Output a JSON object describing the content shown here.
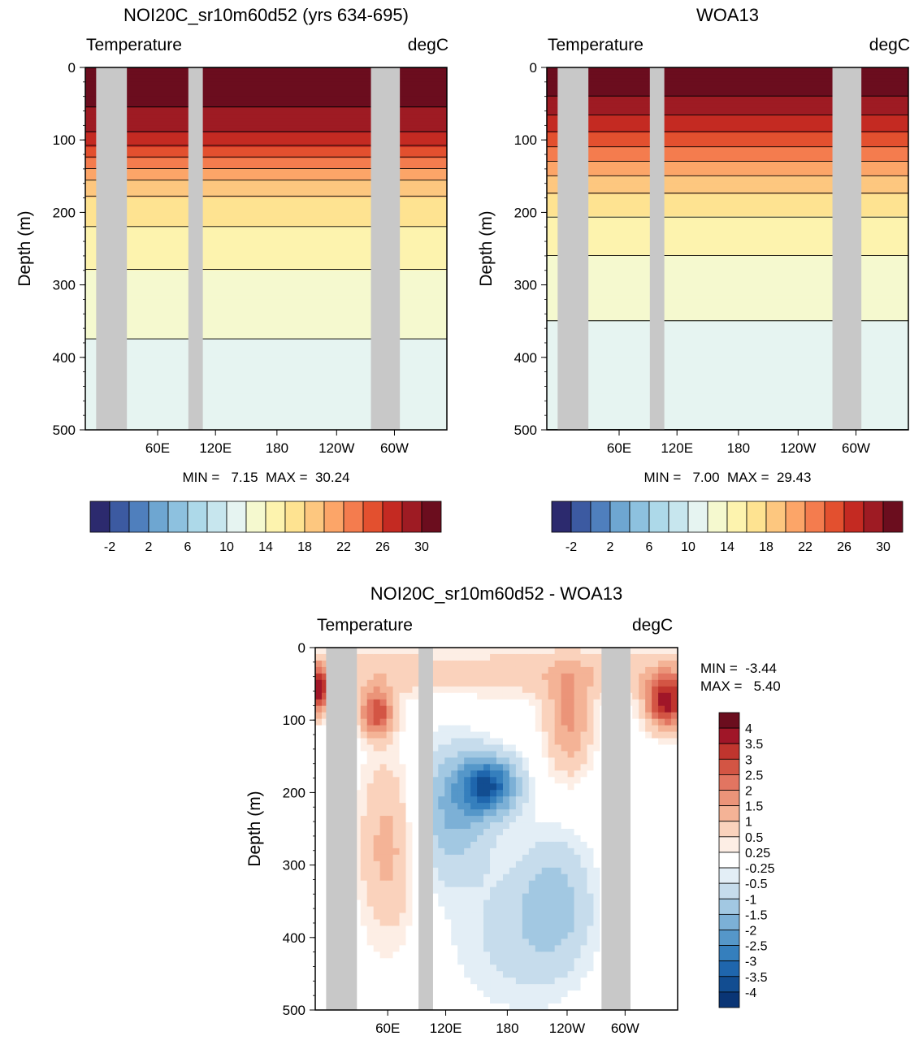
{
  "chart_data": [
    {
      "type": "heatmap",
      "title": "NOI20C_sr10m60d52 (yrs 634-695)",
      "left_label": "Temperature",
      "right_label": "degC",
      "ylabel": "Depth (m)",
      "ylim": [
        0,
        500
      ],
      "y_ticks": [
        "0",
        "100",
        "200",
        "300",
        "400",
        "500"
      ],
      "x_ticks": [
        "60E",
        "120E",
        "180",
        "120W",
        "60W"
      ],
      "min_max_text": "MIN =   7.15  MAX =  30.24",
      "min": 7.15,
      "max": 30.24,
      "colorbar_labels": [
        "-2",
        "2",
        "6",
        "10",
        "14",
        "18",
        "22",
        "26",
        "30"
      ],
      "colorbar_colors": [
        "#2c2a6e",
        "#3c5aa1",
        "#4f7fbd",
        "#6ea6d1",
        "#8dc1df",
        "#add9e9",
        "#c7e6ee",
        "#e6f4f1",
        "#f5f9cf",
        "#fdf3ae",
        "#fee391",
        "#fdc77f",
        "#fca568",
        "#f47c4e",
        "#e3502f",
        "#c42a22",
        "#9e1b23",
        "#6b0d1e"
      ],
      "profile": [
        [
          0,
          30
        ],
        [
          20,
          29
        ],
        [
          40,
          28.5
        ],
        [
          60,
          27.8
        ],
        [
          80,
          26.8
        ],
        [
          100,
          25
        ],
        [
          120,
          22.5
        ],
        [
          140,
          20
        ],
        [
          160,
          17.5
        ],
        [
          180,
          15.8
        ],
        [
          200,
          14.8
        ],
        [
          230,
          13.6
        ],
        [
          260,
          12.5
        ],
        [
          300,
          11.4
        ],
        [
          350,
          10.4
        ],
        [
          400,
          9.6
        ],
        [
          450,
          8.8
        ],
        [
          500,
          8.2
        ]
      ],
      "land": [
        [
          0.03,
          0.115
        ],
        [
          0.285,
          0.325
        ],
        [
          0.79,
          0.87
        ]
      ]
    },
    {
      "type": "heatmap",
      "title": "WOA13",
      "left_label": "Temperature",
      "right_label": "degC",
      "ylabel": "Depth (m)",
      "ylim": [
        0,
        500
      ],
      "y_ticks": [
        "0",
        "100",
        "200",
        "300",
        "400",
        "500"
      ],
      "x_ticks": [
        "60E",
        "120E",
        "180",
        "120W",
        "60W"
      ],
      "min_max_text": "MIN =   7.00  MAX =  29.43",
      "min": 7.0,
      "max": 29.43,
      "colorbar_labels": [
        "-2",
        "2",
        "6",
        "10",
        "14",
        "18",
        "22",
        "26",
        "30"
      ],
      "colorbar_colors": [
        "#2c2a6e",
        "#3c5aa1",
        "#4f7fbd",
        "#6ea6d1",
        "#8dc1df",
        "#add9e9",
        "#c7e6ee",
        "#e6f4f1",
        "#f5f9cf",
        "#fdf3ae",
        "#fee391",
        "#fdc77f",
        "#fca568",
        "#f47c4e",
        "#e3502f",
        "#c42a22",
        "#9e1b23",
        "#6b0d1e"
      ],
      "profile": [
        [
          0,
          29.4
        ],
        [
          20,
          29
        ],
        [
          40,
          28
        ],
        [
          60,
          26.5
        ],
        [
          80,
          24.8
        ],
        [
          100,
          23
        ],
        [
          120,
          21
        ],
        [
          140,
          19
        ],
        [
          160,
          17
        ],
        [
          180,
          15.5
        ],
        [
          200,
          14.3
        ],
        [
          230,
          13
        ],
        [
          260,
          12
        ],
        [
          300,
          11
        ],
        [
          350,
          10
        ],
        [
          400,
          9.3
        ],
        [
          450,
          8.6
        ],
        [
          500,
          8
        ]
      ],
      "land": [
        [
          0.03,
          0.115
        ],
        [
          0.285,
          0.325
        ],
        [
          0.79,
          0.87
        ]
      ]
    },
    {
      "type": "heatmap",
      "title": "NOI20C_sr10m60d52 - WOA13",
      "left_label": "Temperature",
      "right_label": "degC",
      "ylabel": "Depth (m)",
      "ylim": [
        0,
        500
      ],
      "y_ticks": [
        "0",
        "100",
        "200",
        "300",
        "400",
        "500"
      ],
      "x_ticks": [
        "60E",
        "120E",
        "180",
        "120W",
        "60W"
      ],
      "min_text": "MIN =  -3.44",
      "max_text": "MAX =   5.40",
      "min": -3.44,
      "max": 5.4,
      "colorbar_labels": [
        "4",
        "3.5",
        "3",
        "2.5",
        "2",
        "1.5",
        "1",
        "0.5",
        "0.25",
        "-0.25",
        "-0.5",
        "-1",
        "-1.5",
        "-2",
        "-2.5",
        "-3",
        "-3.5",
        "-4"
      ],
      "colorbar_colors": [
        "#6b0d1e",
        "#a01628",
        "#c0352e",
        "#d35544",
        "#e27561",
        "#eb9479",
        "#f4b396",
        "#fad2bc",
        "#fdeee5",
        "#ffffff",
        "#e3eef6",
        "#c6dcec",
        "#a2c8e2",
        "#7cb0d6",
        "#5597c9",
        "#357fbd",
        "#1f66ad",
        "#124d91",
        "#0a3575"
      ],
      "land": [
        [
          0.03,
          0.115
        ],
        [
          0.285,
          0.325
        ],
        [
          0.79,
          0.87
        ]
      ]
    }
  ]
}
